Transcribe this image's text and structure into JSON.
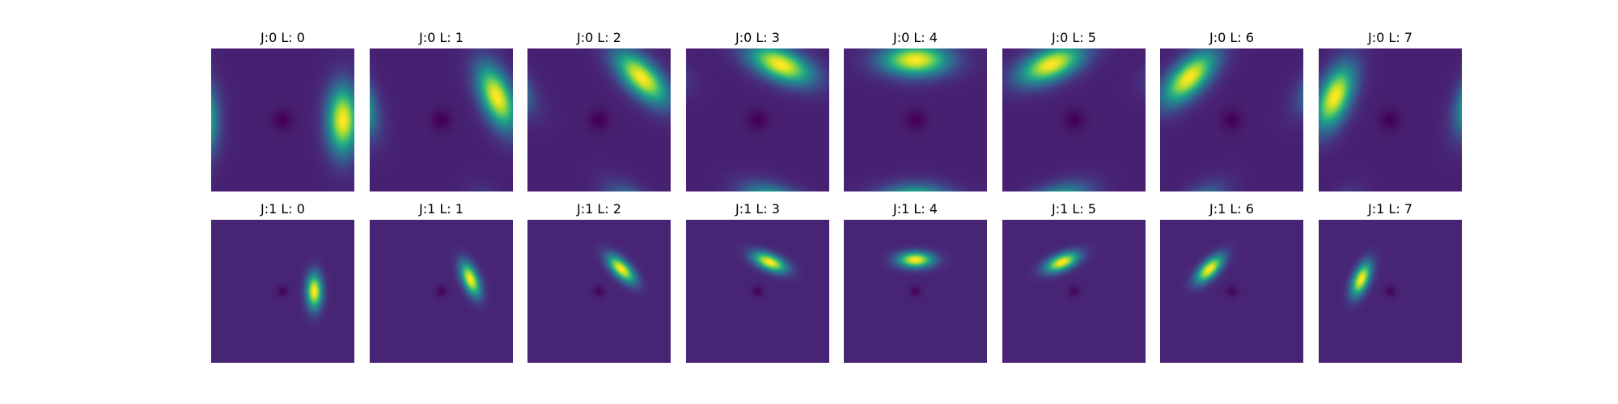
{
  "chart_data": {
    "type": "heatmap",
    "colormap": "viridis",
    "colormap_stops": [
      "#440154",
      "#482878",
      "#3e4a89",
      "#31688e",
      "#26828e",
      "#1f9e89",
      "#35b779",
      "#6ece58",
      "#b5de2b",
      "#fde725"
    ],
    "grid": false,
    "axes_visible": false,
    "rows": [
      {
        "scale_j": 0,
        "panels": [
          {
            "title": "J:0 L: 0",
            "orientation_index": 0
          },
          {
            "title": "J:0 L: 1",
            "orientation_index": 1
          },
          {
            "title": "J:0 L: 2",
            "orientation_index": 2
          },
          {
            "title": "J:0 L: 3",
            "orientation_index": 3
          },
          {
            "title": "J:0 L: 4",
            "orientation_index": 4
          },
          {
            "title": "J:0 L: 5",
            "orientation_index": 5
          },
          {
            "title": "J:0 L: 6",
            "orientation_index": 6
          },
          {
            "title": "J:0 L: 7",
            "orientation_index": 7
          }
        ]
      },
      {
        "scale_j": 1,
        "panels": [
          {
            "title": "J:1 L: 0",
            "orientation_index": 0
          },
          {
            "title": "J:1 L: 1",
            "orientation_index": 1
          },
          {
            "title": "J:1 L: 2",
            "orientation_index": 2
          },
          {
            "title": "J:1 L: 3",
            "orientation_index": 3
          },
          {
            "title": "J:1 L: 4",
            "orientation_index": 4
          },
          {
            "title": "J:1 L: 5",
            "orientation_index": 5
          },
          {
            "title": "J:1 L: 6",
            "orientation_index": 6
          },
          {
            "title": "J:1 L: 7",
            "orientation_index": 7
          }
        ]
      }
    ]
  }
}
